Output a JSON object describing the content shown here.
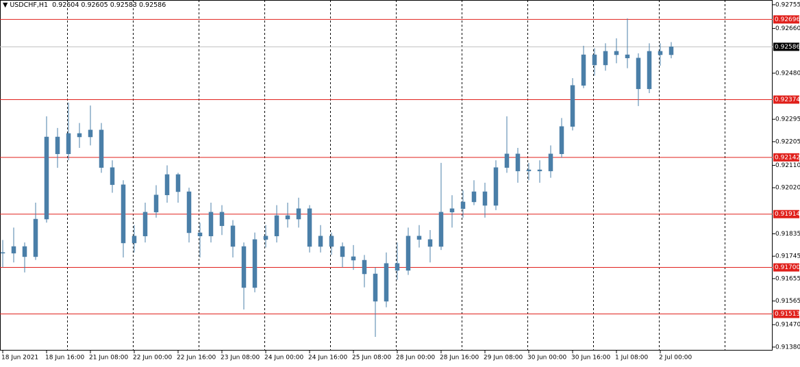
{
  "chart_data": {
    "type": "candlestick",
    "title": "USDCHF,H1",
    "header_values": [
      0.92604,
      0.92605,
      0.92583,
      0.92586
    ],
    "color": "#4a7fa8",
    "categories": [
      "18 Jun 2021",
      null,
      null,
      null,
      "18 Jun 16:00",
      null,
      null,
      null,
      "21 Jun 08:00",
      null,
      null,
      null,
      "22 Jun 00:00",
      null,
      null,
      null,
      "22 Jun 16:00",
      null,
      null,
      null,
      "23 Jun 08:00",
      null,
      null,
      null,
      "24 Jun 00:00",
      null,
      null,
      null,
      "24 Jun 16:00",
      null,
      null,
      null,
      "25 Jun 08:00",
      null,
      null,
      null,
      "28 Jun 00:00",
      null,
      null,
      null,
      "28 Jun 16:00",
      null,
      null,
      null,
      "29 Jun 08:00",
      null,
      null,
      null,
      "30 Jun 00:00",
      null,
      null,
      null,
      "30 Jun 16:00",
      null,
      null,
      null,
      "1 Jul 08:00",
      null,
      null,
      null,
      "2 Jul 00:00",
      null
    ],
    "open": [
      0.9176,
      0.91757,
      0.91784,
      0.91743,
      0.91894,
      0.92224,
      0.92156,
      0.92238,
      0.92224,
      0.92252,
      0.92101,
      0.92032,
      0.91798,
      0.91826,
      0.91922,
      0.91991,
      0.92073,
      0.92004,
      0.91839,
      0.91826,
      0.91922,
      0.91867,
      0.91784,
      0.91619,
      0.91812,
      0.91826,
      0.91908,
      0.91894,
      0.91936,
      0.91784,
      0.91826,
      0.91784,
      0.91743,
      0.91729,
      0.91674,
      0.91564,
      0.91716,
      0.91688,
      0.91826,
      0.91812,
      0.91784,
      0.91922,
      0.91936,
      0.91963,
      0.92004,
      0.91949,
      0.92101,
      0.92156,
      0.92087,
      0.92092,
      0.92087,
      0.92156,
      0.92266,
      0.92431,
      0.92554,
      0.92513,
      0.92568,
      0.92554,
      0.92541,
      0.92417,
      0.92568,
      0.92554
    ],
    "high": [
      0.9181,
      0.9186,
      0.918,
      0.9196,
      0.92307,
      0.9226,
      0.92362,
      0.9228,
      0.9235,
      0.9228,
      0.9213,
      0.9205,
      0.9187,
      0.9196,
      0.9203,
      0.9211,
      0.9208,
      0.9202,
      0.9188,
      0.9196,
      0.9195,
      0.9189,
      0.918,
      0.9184,
      0.9187,
      0.9195,
      0.9196,
      0.9198,
      0.9195,
      0.9187,
      0.9184,
      0.918,
      0.9179,
      0.9175,
      0.917,
      0.9176,
      0.918,
      0.9186,
      0.9187,
      0.9185,
      0.9212,
      0.9199,
      0.9201,
      0.9205,
      0.9204,
      0.9213,
      0.92307,
      0.9218,
      0.9212,
      0.9213,
      0.9219,
      0.923,
      0.9246,
      0.9259,
      0.9258,
      0.926,
      0.9262,
      0.927,
      0.9256,
      0.926,
      0.926,
      0.92605
    ],
    "low": [
      0.917,
      0.9172,
      0.9168,
      0.9173,
      0.9188,
      0.921,
      0.9213,
      0.9218,
      0.9219,
      0.9208,
      0.92,
      0.9174,
      0.9176,
      0.918,
      0.919,
      0.9196,
      0.9196,
      0.918,
      0.9174,
      0.918,
      0.9183,
      0.9174,
      0.91531,
      0.916,
      0.9178,
      0.918,
      0.9186,
      0.9186,
      0.9176,
      0.9176,
      0.9175,
      0.917,
      0.9169,
      0.9162,
      0.91421,
      0.9154,
      0.9165,
      0.9167,
      0.9178,
      0.9172,
      0.9177,
      0.9186,
      0.919,
      0.9195,
      0.919,
      0.9193,
      0.9208,
      0.9204,
      0.9205,
      0.9204,
      0.9206,
      0.9214,
      0.9225,
      0.9242,
      0.9247,
      0.9249,
      0.9252,
      0.925,
      0.92348,
      0.924,
      0.9251,
      0.9254
    ],
    "close": [
      0.91757,
      0.91784,
      0.91743,
      0.91894,
      0.92224,
      0.92156,
      0.92238,
      0.92224,
      0.92252,
      0.92101,
      0.92032,
      0.91798,
      0.91826,
      0.91922,
      0.91991,
      0.92073,
      0.92004,
      0.91839,
      0.91826,
      0.91922,
      0.91867,
      0.91784,
      0.91619,
      0.91812,
      0.91826,
      0.91908,
      0.91894,
      0.91936,
      0.91784,
      0.91826,
      0.91784,
      0.91743,
      0.91729,
      0.91674,
      0.91564,
      0.91716,
      0.91688,
      0.91826,
      0.91812,
      0.91784,
      0.91922,
      0.91936,
      0.91963,
      0.92004,
      0.91949,
      0.92101,
      0.92156,
      0.92087,
      0.92092,
      0.92087,
      0.92156,
      0.92266,
      0.92431,
      0.92554,
      0.92513,
      0.92568,
      0.92554,
      0.92541,
      0.92417,
      0.92568,
      0.92554,
      0.92586
    ],
    "ylim": [
      0.91366,
      0.92774
    ],
    "yticks": [
      0.92755,
      {
        "value": 0.9266,
        "label": "0.92660"
      },
      {
        "value": 0.9248,
        "label": "0.92480"
      },
      0.92295,
      0.92205,
      {
        "value": 0.9211,
        "label": "0.92110"
      },
      {
        "value": 0.9202,
        "label": "0.92020"
      },
      0.91835,
      0.91745,
      0.91655,
      0.91565,
      {
        "value": 0.9147,
        "label": "0.91470"
      },
      {
        "value": 0.9138,
        "label": "0.91380"
      }
    ],
    "levels": [
      0.92696,
      0.92374,
      0.92142,
      0.91914,
      0.917,
      0.91513
    ],
    "level_labels": [
      "0.92696",
      "0.92374",
      "0.92142",
      "0.91914",
      "0.91700",
      "0.91513"
    ],
    "level_color": "#e0201b",
    "last_price": 0.92586,
    "grid": "vertical"
  }
}
